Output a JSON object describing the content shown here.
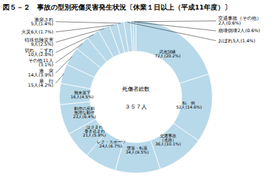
{
  "chart_data": {
    "type": "pie",
    "title": "図５－２　事故の型別死傷災害発生状況〔休業１日以上（平成11年度）〕",
    "annotations": [
      "死傷者総数",
      "３５７人"
    ],
    "categories": [
      "武道訓練\n72人(20.2%)",
      "転　倒\n52人(14.6%)",
      "交通事故\n（道路）\n36人(10.1%)",
      "墜落・転落\n34人(9.5%)",
      "レク・スポーツ\n24人(6.7%)",
      "はさまれ\n巻き込まれ\n21人(5.9%)",
      "動作の反動\n無理な動作\n23人(6.4%)",
      "飛来落下\n16人(4.5%)",
      "暴　行\n15人(4.2%)",
      "激　突\n14人(3.9%)",
      "その他11人\n(3.1%)",
      "切れ、こすれ\n10人(2.8%)",
      "特殊危険災害\n9人(2.5%)",
      "火災6人(1.7%)",
      "激突され\n5人(1.4%)",
      "おぼれ5人(1.4%)",
      "崩壊倒壊2人(0.6%)",
      "交通事故（その他）\n2人(0.6%)"
    ],
    "values": [
      72,
      52,
      36,
      34,
      24,
      21,
      23,
      16,
      15,
      14,
      11,
      10,
      9,
      6,
      5,
      5,
      2,
      2
    ],
    "color": "#b8d9ea"
  }
}
